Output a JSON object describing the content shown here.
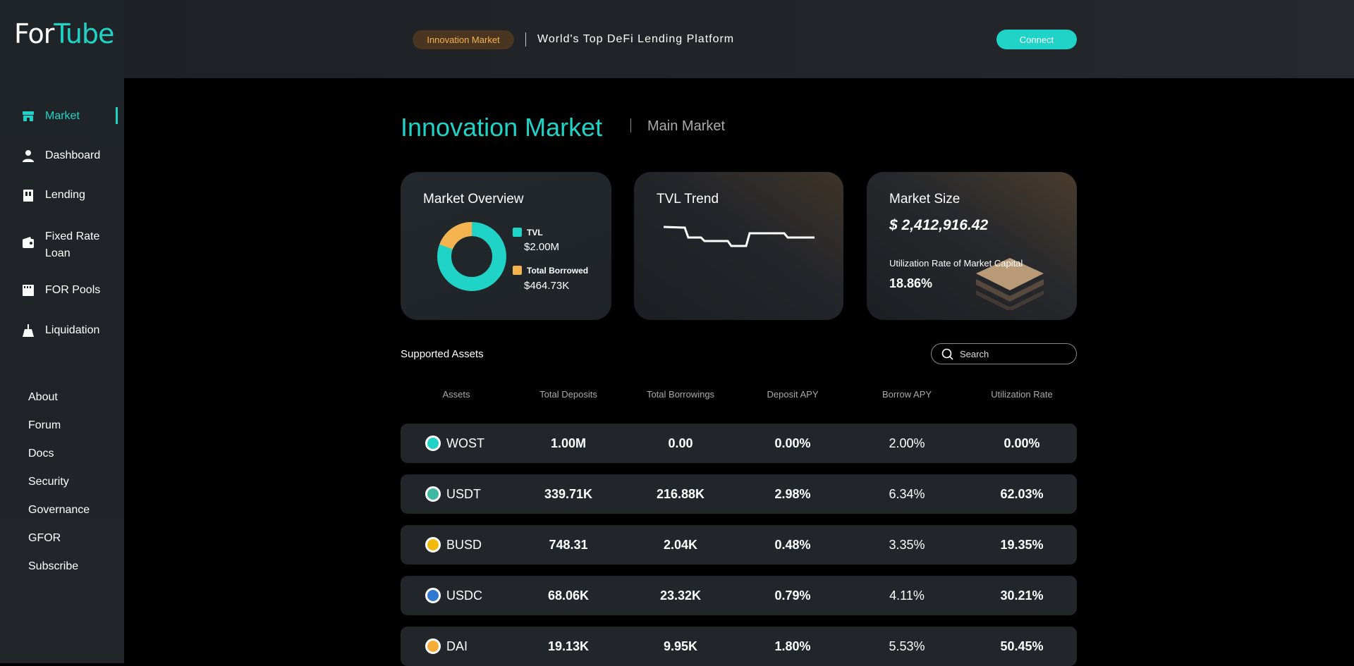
{
  "brand": {
    "logo_part1": "For",
    "logo_part2": "Tube"
  },
  "sidebar": {
    "items": [
      {
        "label": "Market",
        "icon": "store-icon",
        "active": true
      },
      {
        "label": "Dashboard",
        "icon": "user-icon"
      },
      {
        "label": "Lending",
        "icon": "lending-icon"
      },
      {
        "label": "Fixed Rate Loan",
        "icon": "wallet-icon"
      },
      {
        "label": "FOR Pools",
        "icon": "pool-icon"
      },
      {
        "label": "Liquidation",
        "icon": "broom-icon"
      }
    ],
    "links": [
      "About",
      "Forum",
      "Docs",
      "Security",
      "Governance",
      "GFOR",
      "Subscribe"
    ]
  },
  "header": {
    "badge": "Innovation Market",
    "tagline": "World's Top DeFi Lending Platform",
    "connect": "Connect"
  },
  "page": {
    "title": "Innovation Market",
    "alt_market": "Main Market"
  },
  "overview": {
    "title": "Market Overview",
    "tvl_label": "TVL",
    "tvl_value": "$2.00M",
    "borrowed_label": "Total Borrowed",
    "borrowed_value": "$464.73K",
    "borrowed_fraction": 0.1926,
    "colors": {
      "tvl": "#1fd3c6",
      "borrowed": "#f5b34f"
    }
  },
  "tvl_trend": {
    "title": "TVL Trend"
  },
  "market_size": {
    "title": "Market Size",
    "value": "$ 2,412,916.42",
    "util_label": "Utilization Rate of Market Capital",
    "util_value": "18.86%"
  },
  "assets": {
    "title": "Supported Assets",
    "search_placeholder": "Search",
    "columns": [
      "Assets",
      "Total Deposits",
      "Total Borrowings",
      "Deposit APY",
      "Borrow APY",
      "Utilization Rate"
    ],
    "rows": [
      {
        "name": "WOST",
        "icon": "wost-icon",
        "color": "#1fd3c6",
        "deposits": "1.00M",
        "borrowings": "0.00",
        "deposit_apy": "0.00%",
        "borrow_apy": "2.00%",
        "utilization": "0.00%"
      },
      {
        "name": "USDT",
        "icon": "tether-icon",
        "color": "#3fb8a0",
        "deposits": "339.71K",
        "borrowings": "216.88K",
        "deposit_apy": "2.98%",
        "borrow_apy": "6.34%",
        "utilization": "62.03%"
      },
      {
        "name": "BUSD",
        "icon": "busd-icon",
        "color": "#f0b90b",
        "deposits": "748.31",
        "borrowings": "2.04K",
        "deposit_apy": "0.48%",
        "borrow_apy": "3.35%",
        "utilization": "19.35%"
      },
      {
        "name": "USDC",
        "icon": "usdc-icon",
        "color": "#2f7ad0",
        "deposits": "68.06K",
        "borrowings": "23.32K",
        "deposit_apy": "0.79%",
        "borrow_apy": "4.11%",
        "utilization": "30.21%"
      },
      {
        "name": "DAI",
        "icon": "dai-icon",
        "color": "#f5ac37",
        "deposits": "19.13K",
        "borrowings": "9.95K",
        "deposit_apy": "1.80%",
        "borrow_apy": "5.53%",
        "utilization": "50.45%"
      }
    ]
  }
}
